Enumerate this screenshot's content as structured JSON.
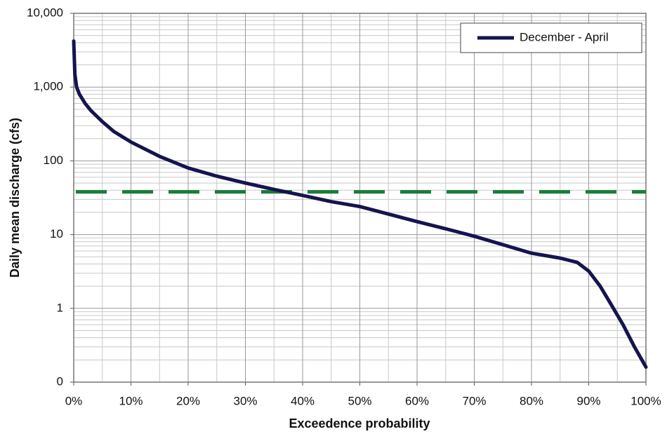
{
  "chart_data": {
    "type": "line",
    "xlabel": "Exceedence probability",
    "ylabel": "Daily mean discharge (cfs)",
    "x": [
      0,
      0.2,
      0.5,
      1,
      2,
      3,
      5,
      7,
      10,
      15,
      20,
      25,
      30,
      35,
      40,
      45,
      50,
      55,
      60,
      65,
      70,
      75,
      80,
      85,
      88,
      90,
      92,
      94,
      96,
      98,
      100
    ],
    "series": [
      {
        "name": "December - April",
        "color": "#14144f",
        "values": [
          4200,
          1500,
          1000,
          800,
          600,
          480,
          340,
          250,
          180,
          115,
          80,
          62,
          50,
          41,
          34,
          28,
          24,
          19,
          15,
          12,
          9.5,
          7.3,
          5.6,
          4.8,
          4.2,
          3.2,
          2.0,
          1.1,
          0.6,
          0.3,
          0.16
        ]
      }
    ],
    "reference_lines": [
      {
        "value": 38,
        "color": "#1e7a3c",
        "style": "dashed"
      }
    ],
    "xlim": [
      0,
      100
    ],
    "xticks": [
      {
        "value": 0,
        "label": "0%"
      },
      {
        "value": 10,
        "label": "10%"
      },
      {
        "value": 20,
        "label": "20%"
      },
      {
        "value": 30,
        "label": "30%"
      },
      {
        "value": 40,
        "label": "40%"
      },
      {
        "value": 50,
        "label": "50%"
      },
      {
        "value": 60,
        "label": "60%"
      },
      {
        "value": 70,
        "label": "70%"
      },
      {
        "value": 80,
        "label": "80%"
      },
      {
        "value": 90,
        "label": "90%"
      },
      {
        "value": 100,
        "label": "100%"
      }
    ],
    "ylim": [
      0.1,
      10000
    ],
    "yticks": [
      {
        "value": 0.1,
        "label": "0"
      },
      1,
      10,
      100,
      {
        "value": 1000,
        "label": "1,000"
      },
      {
        "value": 10000,
        "label": "10,000"
      }
    ],
    "ylog": true,
    "grid": true,
    "legend": "upper right"
  }
}
